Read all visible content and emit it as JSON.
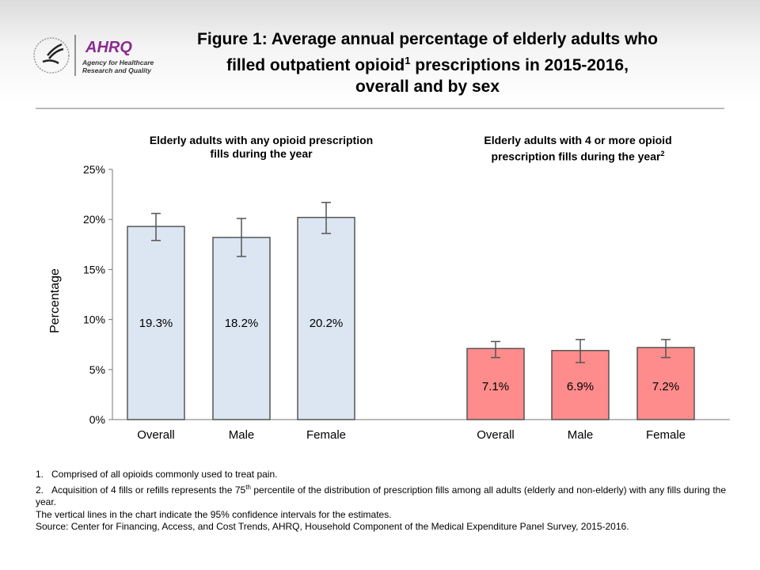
{
  "logo": {
    "agency": "AHRQ",
    "subtitle_line1": "Agency for Healthcare",
    "subtitle_line2": "Research and Quality"
  },
  "title": {
    "line1": "Figure 1: Average annual percentage of elderly adults who",
    "line2a": "filled outpatient opioid",
    "line2sup": "1",
    "line2b": " prescriptions in 2015-2016,",
    "line3": "overall and by sex"
  },
  "chart_data": {
    "type": "bar",
    "ylabel": "Percentage",
    "ylim": [
      0,
      25
    ],
    "yticks": [
      "0%",
      "5%",
      "10%",
      "15%",
      "20%",
      "25%"
    ],
    "grid": false,
    "panels": [
      {
        "title_line1": "Elderly adults with any opioid prescription",
        "title_line2": "fills during the year",
        "title_sup": "",
        "color": "#dce6f2",
        "categories": [
          "Overall",
          "Male",
          "Female"
        ],
        "values": [
          19.3,
          18.2,
          20.2
        ],
        "labels": [
          "19.3%",
          "18.2%",
          "20.2%"
        ],
        "ci_low": [
          17.9,
          16.3,
          18.6
        ],
        "ci_high": [
          20.6,
          20.1,
          21.7
        ]
      },
      {
        "title_line1": "Elderly adults with 4 or more opioid",
        "title_line2": "prescription fills during the year",
        "title_sup": "2",
        "color": "#ff8c8c",
        "categories": [
          "Overall",
          "Male",
          "Female"
        ],
        "values": [
          7.1,
          6.9,
          7.2
        ],
        "labels": [
          "7.1%",
          "6.9%",
          "7.2%"
        ],
        "ci_low": [
          6.2,
          5.7,
          6.2
        ],
        "ci_high": [
          7.8,
          8.0,
          8.0
        ]
      }
    ]
  },
  "notes": {
    "fn1_num": "1.",
    "fn1": "Comprised of all opioids commonly used to treat pain.",
    "fn2_num": "2.",
    "fn2a": "Acquisition of 4 fills or refills represents the 75",
    "fn2sup": "th",
    "fn2b": " percentile of the distribution of prescription fills among all adults (elderly and non-elderly) with any fills during the year.",
    "ci": "The vertical lines in the chart indicate the 95% confidence intervals for the estimates.",
    "source": "Source: Center for Financing, Access, and Cost Trends, AHRQ, Household Component of the Medical Expenditure Panel Survey, 2015-2016."
  }
}
